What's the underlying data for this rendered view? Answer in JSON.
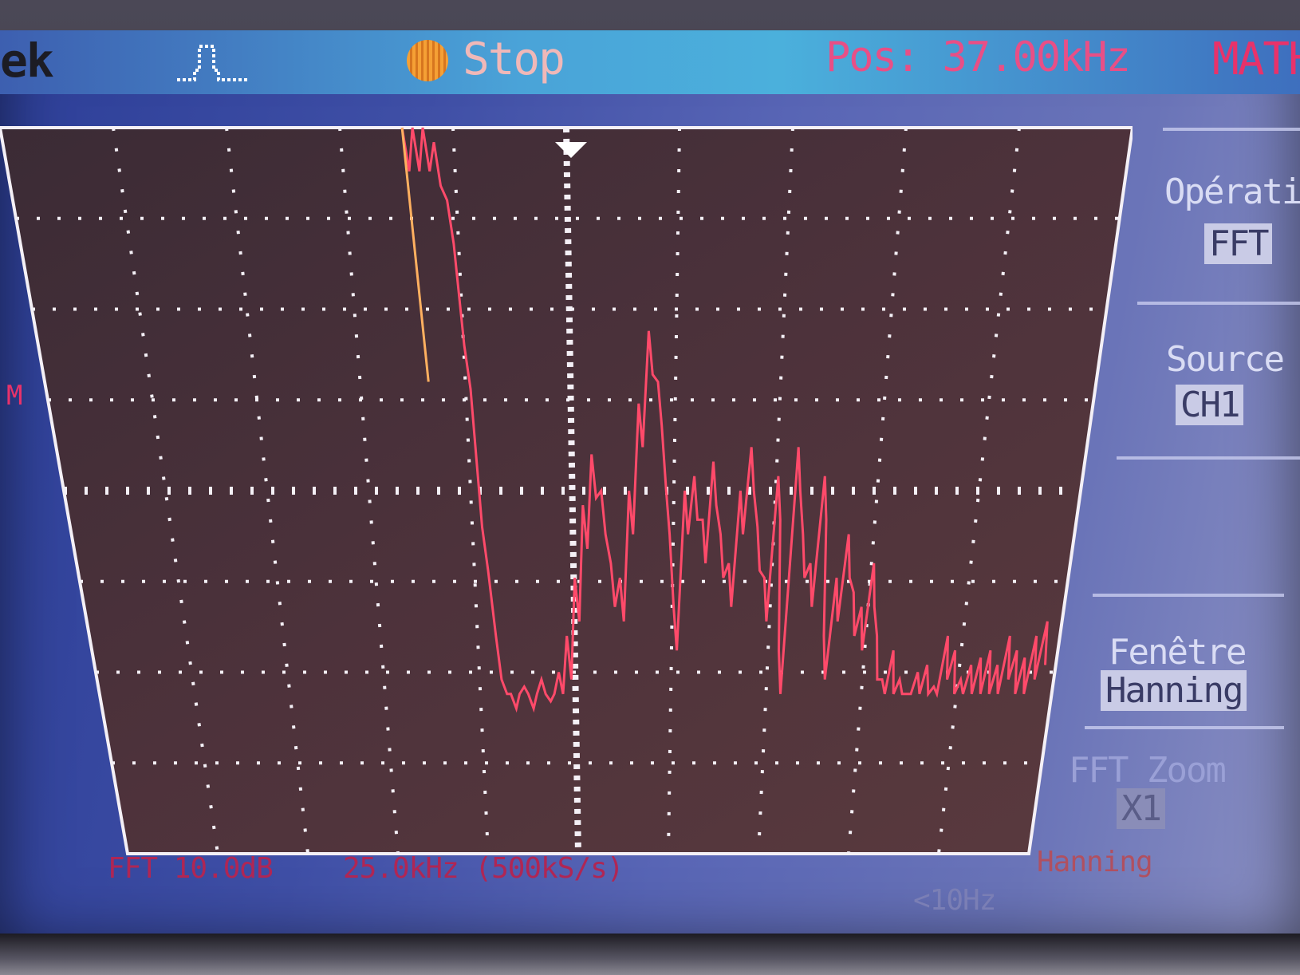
{
  "topbar": {
    "brand": "ek",
    "trigger_icon": "pulse-trigger-icon",
    "run_state": "Stop",
    "position": "Pos: 37.00kHz",
    "mode": "MATH"
  },
  "side_menu": {
    "operation": {
      "title": "Opératio",
      "value": "FFT"
    },
    "source": {
      "title": "Source",
      "value": "CH1"
    },
    "window": {
      "title": "Fenêtre",
      "value": "Hanning"
    },
    "zoom": {
      "title": "FFT Zoom",
      "value": "X1"
    }
  },
  "bottombar": {
    "scale": "FFT 10.0dB",
    "span": "25.0kHz (500kS/s)",
    "window": "Hanning",
    "freq": "<10Hz"
  },
  "markers": {
    "math_marker": "M"
  },
  "colors": {
    "trace": "#ff4a6a",
    "grid_dot": "#f4f0f6",
    "grid_bg": "#4b3138",
    "cursor": "#ffffff"
  },
  "chart_data": {
    "type": "line",
    "x_divisions": 10,
    "y_divisions": 8,
    "series": [
      {
        "values": [
          0.0,
          0.0,
          0.0,
          0.02,
          0.1,
          0.3,
          0.55,
          0.7,
          0.78,
          0.8,
          0.77,
          0.8,
          0.76,
          0.79,
          0.75,
          0.7,
          0.62,
          0.52,
          0.45,
          0.5,
          0.6,
          0.62,
          0.5,
          0.38,
          0.28,
          0.35,
          0.5,
          0.66,
          0.5,
          0.48,
          0.54,
          0.46,
          0.56,
          0.6,
          0.5,
          0.44,
          0.55,
          0.62,
          0.48,
          0.72,
          0.44,
          0.56,
          0.6,
          0.48,
          0.7,
          0.62,
          0.56,
          0.64,
          0.66,
          0.6,
          0.7,
          0.76,
          0.72,
          0.76,
          0.78,
          0.75,
          0.74,
          0.77,
          0.7,
          0.72,
          0.76,
          0.74,
          0.73,
          0.72,
          0.74,
          0.7,
          0.72,
          0.73,
          0.7,
          0.68
        ]
      }
    ]
  }
}
